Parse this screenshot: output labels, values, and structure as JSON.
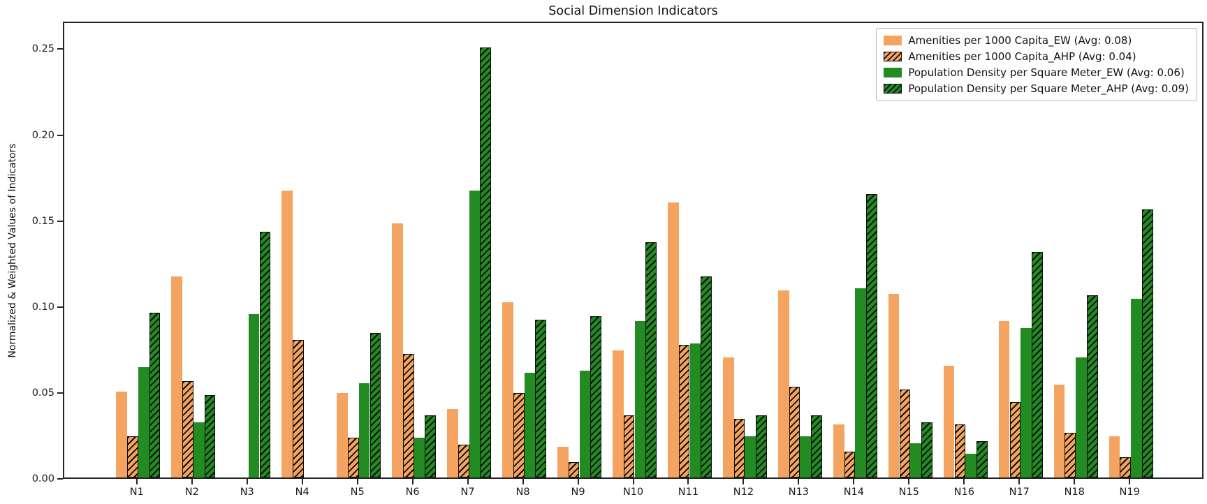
{
  "chart_data": {
    "type": "bar",
    "title": "Social Dimension Indicators",
    "xlabel": "",
    "ylabel": "Normalized & Weighted Values of Indicators",
    "categories": [
      "N1",
      "N2",
      "N3",
      "N4",
      "N5",
      "N6",
      "N7",
      "N8",
      "N9",
      "N10",
      "N11",
      "N12",
      "N13",
      "N14",
      "N15",
      "N16",
      "N17",
      "N18",
      "N19"
    ],
    "y_ticks": [
      {
        "value": 0.0,
        "label": "0.00"
      },
      {
        "value": 0.05,
        "label": "0.05"
      },
      {
        "value": 0.1,
        "label": "0.10"
      },
      {
        "value": 0.15,
        "label": "0.15"
      },
      {
        "value": 0.2,
        "label": "0.20"
      },
      {
        "value": 0.25,
        "label": "0.25"
      }
    ],
    "ylim": [
      0,
      0.266
    ],
    "grid": false,
    "legend_position": "upper right",
    "series": [
      {
        "name": "Amenities per 1000 Capita_EW (Avg: 0.08)",
        "color": "#f4a460",
        "hatch": false,
        "values": [
          0.05,
          0.117,
          0.0,
          0.167,
          0.049,
          0.148,
          0.04,
          0.102,
          0.018,
          0.074,
          0.16,
          0.07,
          0.109,
          0.031,
          0.107,
          0.065,
          0.091,
          0.054,
          0.024
        ]
      },
      {
        "name": "Amenities per 1000 Capita_AHP (Avg: 0.04)",
        "color": "#f4a460",
        "hatch": true,
        "values": [
          0.024,
          0.056,
          0.0,
          0.08,
          0.023,
          0.072,
          0.019,
          0.049,
          0.009,
          0.036,
          0.077,
          0.034,
          0.053,
          0.015,
          0.051,
          0.031,
          0.044,
          0.026,
          0.012
        ]
      },
      {
        "name": "Population Density per Square Meter_EW (Avg: 0.06)",
        "color": "#228b22",
        "hatch": false,
        "values": [
          0.064,
          0.032,
          0.095,
          0.0,
          0.055,
          0.023,
          0.167,
          0.061,
          0.062,
          0.091,
          0.078,
          0.024,
          0.024,
          0.11,
          0.02,
          0.014,
          0.087,
          0.07,
          0.104
        ]
      },
      {
        "name": "Population Density per Square Meter_AHP (Avg: 0.09)",
        "color": "#228b22",
        "hatch": true,
        "values": [
          0.096,
          0.048,
          0.143,
          0.0,
          0.084,
          0.036,
          0.25,
          0.092,
          0.094,
          0.137,
          0.117,
          0.036,
          0.036,
          0.165,
          0.032,
          0.021,
          0.131,
          0.106,
          0.156
        ]
      }
    ]
  }
}
